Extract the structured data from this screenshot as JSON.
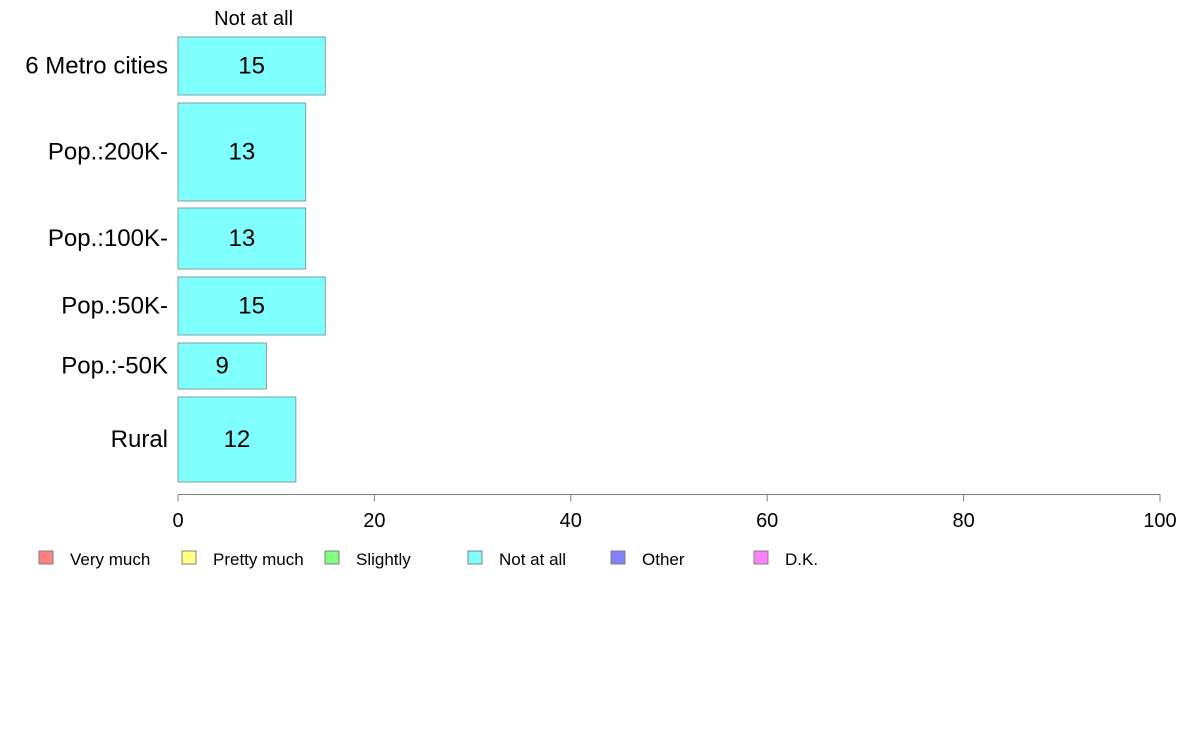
{
  "chart_data": {
    "type": "bar",
    "orientation": "horizontal",
    "column_header": "Not at all",
    "categories": [
      "6 Metro cities",
      "Pop.:200K-",
      "Pop.:100K-",
      "Pop.:50K-",
      "Pop.:-50K",
      "Rural"
    ],
    "series": [
      {
        "name": "Not at all",
        "values": [
          15,
          13,
          13,
          15,
          9,
          12
        ]
      }
    ],
    "xlim": [
      0,
      100
    ],
    "xticks": [
      "0",
      "20",
      "40",
      "60",
      "80",
      "100"
    ],
    "xlabel": "",
    "ylabel": "",
    "grid": false,
    "legend_position": "bottom",
    "legend": [
      {
        "label": "Very much",
        "color": "#ff8080"
      },
      {
        "label": "Pretty much",
        "color": "#ffff80"
      },
      {
        "label": "Slightly",
        "color": "#80ff80"
      },
      {
        "label": "Not at all",
        "color": "#80ffff"
      },
      {
        "label": "Other",
        "color": "#8080ff"
      },
      {
        "label": "D.K.",
        "color": "#ff80ff"
      }
    ],
    "bar_color": "#80ffff",
    "bar_stroke": "#7f9f9f",
    "axis_color": "#808080"
  }
}
